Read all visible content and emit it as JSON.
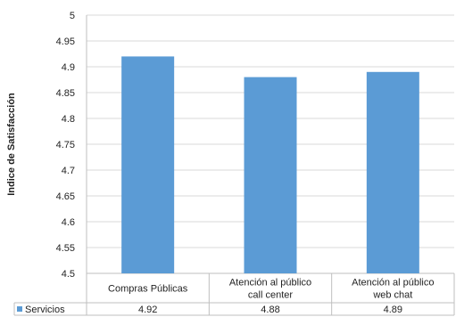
{
  "chart_data": {
    "type": "bar",
    "categories": [
      "Compras Públicas",
      "Atención al público call center",
      "Atención al público web chat"
    ],
    "series": [
      {
        "name": "Servicios",
        "values": [
          4.92,
          4.88,
          4.89
        ],
        "value_labels": [
          "4.92",
          "4.88",
          "4.89"
        ],
        "color": "#5B9BD5"
      }
    ],
    "ylabel": "Indice de Satisfacción",
    "ylim": [
      4.5,
      5
    ],
    "yticks": [
      "4.5",
      "4.55",
      "4.6",
      "4.65",
      "4.7",
      "4.75",
      "4.8",
      "4.85",
      "4.9",
      "4.95",
      "5"
    ],
    "grid": true,
    "legend": "data-table"
  }
}
